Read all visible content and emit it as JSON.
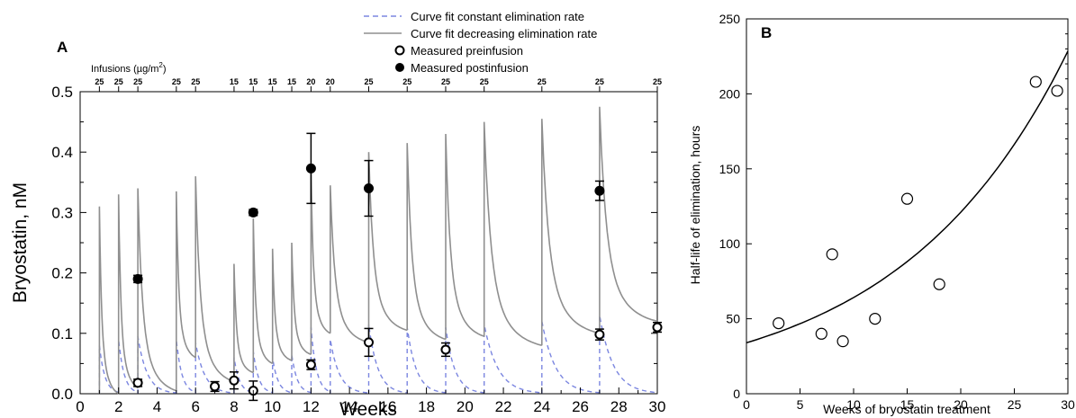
{
  "legend": {
    "items": [
      {
        "label": "Curve fit constant elimination rate",
        "style": "dashed",
        "color": "#7b86e0"
      },
      {
        "label": "Curve fit decreasing elimination rate",
        "style": "solid",
        "color": "#8f8f8f"
      },
      {
        "label": "Measured preinfusion",
        "style": "open-circle"
      },
      {
        "label": "Measured postinfusion",
        "style": "filled-circle"
      }
    ]
  },
  "panel_a": {
    "letter": "A",
    "infusions_label": "Infusions (µg/m",
    "infusions_sup": "2",
    "infusions_close": ")"
  },
  "panel_b": {
    "letter": "B"
  },
  "chart_data": [
    {
      "type": "line",
      "panel": "A",
      "xlabel": "Weeks",
      "ylabel": "Bryostatin, nM",
      "xlim": [
        0,
        30
      ],
      "ylim": [
        0,
        0.5
      ],
      "xticks": [
        0,
        2,
        4,
        6,
        8,
        10,
        12,
        14,
        16,
        18,
        20,
        22,
        24,
        26,
        28,
        30
      ],
      "yticks": [
        0.0,
        0.1,
        0.2,
        0.3,
        0.4,
        0.5
      ],
      "ytick_labels": [
        "0.0",
        "0.1",
        "0.2",
        "0.3",
        "0.4",
        "0.5"
      ],
      "infusions": [
        {
          "week": 1,
          "dose": 25
        },
        {
          "week": 2,
          "dose": 25
        },
        {
          "week": 3,
          "dose": 25
        },
        {
          "week": 5,
          "dose": 25
        },
        {
          "week": 6,
          "dose": 25
        },
        {
          "week": 8,
          "dose": 15
        },
        {
          "week": 9,
          "dose": 15
        },
        {
          "week": 10,
          "dose": 15
        },
        {
          "week": 11,
          "dose": 15
        },
        {
          "week": 12,
          "dose": 20
        },
        {
          "week": 13,
          "dose": 20
        },
        {
          "week": 15,
          "dose": 25
        },
        {
          "week": 17,
          "dose": 25
        },
        {
          "week": 19,
          "dose": 25
        },
        {
          "week": 21,
          "dose": 25
        },
        {
          "week": 24,
          "dose": 25
        },
        {
          "week": 27,
          "dose": 25
        },
        {
          "week": 30,
          "dose": 25
        }
      ],
      "series": [
        {
          "name": "Curve fit decreasing elimination rate",
          "kind": "solid",
          "peaks": [
            0.31,
            0.33,
            0.34,
            0.335,
            0.36,
            0.215,
            0.29,
            0.24,
            0.25,
            0.37,
            0.345,
            0.4,
            0.415,
            0.43,
            0.45,
            0.455,
            0.475
          ],
          "troughs": [
            0.0,
            0.01,
            0.005,
            0.06,
            0.02,
            0.035,
            0.05,
            0.055,
            0.065,
            0.1,
            0.085,
            0.105,
            0.09,
            0.095,
            0.08,
            0.1,
            0.12
          ]
        },
        {
          "name": "Curve fit constant elimination rate",
          "kind": "dashed",
          "peaks": [
            0.08,
            0.09,
            0.095,
            0.09,
            0.085,
            0.06,
            0.07,
            0.06,
            0.065,
            0.11,
            0.09,
            0.115,
            0.11,
            0.11,
            0.115,
            0.12,
            0.13
          ]
        },
        {
          "name": "Measured preinfusion",
          "kind": "open",
          "points": [
            {
              "x": 3,
              "y": 0.018,
              "err": 0.006
            },
            {
              "x": 7,
              "y": 0.012,
              "err": 0.008
            },
            {
              "x": 8,
              "y": 0.022,
              "err": 0.014
            },
            {
              "x": 9,
              "y": 0.005,
              "err": 0.016
            },
            {
              "x": 12,
              "y": 0.048,
              "err": 0.008
            },
            {
              "x": 15,
              "y": 0.085,
              "err": 0.023
            },
            {
              "x": 19,
              "y": 0.073,
              "err": 0.011
            },
            {
              "x": 27,
              "y": 0.098,
              "err": 0.009
            },
            {
              "x": 30,
              "y": 0.11,
              "err": 0.008
            }
          ]
        },
        {
          "name": "Measured postinfusion",
          "kind": "filled",
          "points": [
            {
              "x": 3,
              "y": 0.19,
              "err": 0.006
            },
            {
              "x": 9,
              "y": 0.3,
              "err": 0.005
            },
            {
              "x": 12,
              "y": 0.373,
              "err": 0.058
            },
            {
              "x": 15,
              "y": 0.34,
              "err": 0.046
            },
            {
              "x": 27,
              "y": 0.336,
              "err": 0.016
            }
          ]
        }
      ]
    },
    {
      "type": "scatter",
      "panel": "B",
      "xlabel": "Weeks of bryostatin treatment",
      "ylabel": "Half-life of elimination, hours",
      "xlim": [
        0,
        30
      ],
      "ylim": [
        0,
        250
      ],
      "xticks": [
        0,
        5,
        10,
        15,
        20,
        25,
        30
      ],
      "yticks": [
        0,
        50,
        100,
        150,
        200,
        250
      ],
      "points": [
        {
          "x": 3,
          "y": 47
        },
        {
          "x": 7,
          "y": 40
        },
        {
          "x": 8,
          "y": 93
        },
        {
          "x": 9,
          "y": 35
        },
        {
          "x": 12,
          "y": 50
        },
        {
          "x": 15,
          "y": 130
        },
        {
          "x": 18,
          "y": 73
        },
        {
          "x": 27,
          "y": 208
        },
        {
          "x": 29,
          "y": 202
        }
      ],
      "fit": {
        "kind": "exponential",
        "y0": 34,
        "rate": 0.0635
      }
    }
  ]
}
